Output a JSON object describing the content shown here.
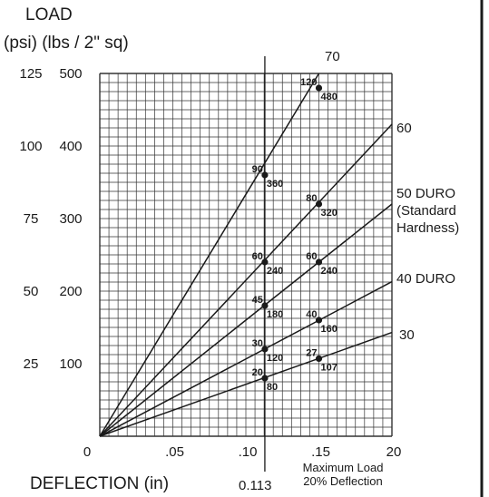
{
  "header": {
    "load_label": "LOAD",
    "units_label": "(psi) (lbs / 2\" sq)"
  },
  "chart_data": {
    "type": "line",
    "xlabel": "DEFLECTION (in)",
    "xlim": [
      0,
      0.2
    ],
    "ylim": [
      0,
      500
    ],
    "x_ticks": [
      "0",
      ".05",
      ".10",
      ".15",
      "20"
    ],
    "y_ticks": [
      {
        "psi": "125",
        "lbs": "500",
        "value": 500
      },
      {
        "psi": "100",
        "lbs": "400",
        "value": 400
      },
      {
        "psi": "75",
        "lbs": "300",
        "value": 300
      },
      {
        "psi": "50",
        "lbs": "200",
        "value": 200
      },
      {
        "psi": "25",
        "lbs": "100",
        "value": 100
      },
      {
        "psi": "",
        "lbs": "",
        "value": 0
      }
    ],
    "grid": true,
    "marker_line": {
      "x": 0.113,
      "label": "0.113"
    },
    "max_note": [
      "Maximum Load",
      "20% Deflection"
    ],
    "series": [
      {
        "name": "70",
        "label_lines": [
          "70"
        ],
        "end": [
          0.15,
          500
        ],
        "points": [
          {
            "x": 0.113,
            "psi": "90",
            "lbs": "360"
          },
          {
            "x": 0.15,
            "psi": "120",
            "lbs": "480"
          }
        ]
      },
      {
        "name": "60",
        "label_lines": [
          "60"
        ],
        "end": [
          0.2,
          430
        ],
        "points": [
          {
            "x": 0.15,
            "psi": "80",
            "lbs": "320"
          }
        ]
      },
      {
        "name": "50 DURO",
        "label_lines": [
          "50 DURO",
          "(Standard",
          "Hardness)"
        ],
        "end": [
          0.2,
          320
        ],
        "points": [
          {
            "x": 0.113,
            "psi": "60",
            "lbs": "240"
          },
          {
            "x": 0.15,
            "psi": "60",
            "lbs": "240"
          }
        ]
      },
      {
        "name": "40 DURO",
        "label_lines": [
          "40 DURO"
        ],
        "end": [
          0.2,
          213
        ],
        "points": [
          {
            "x": 0.113,
            "psi": "45",
            "lbs": "180"
          },
          {
            "x": 0.15,
            "psi": "40",
            "lbs": "160"
          }
        ]
      },
      {
        "name": "30",
        "label_lines": [
          "30"
        ],
        "end": [
          0.2,
          143
        ],
        "points": [
          {
            "x": 0.113,
            "psi": "30",
            "lbs": "120"
          },
          {
            "x": 0.15,
            "psi": "27",
            "lbs": "107"
          },
          {
            "x": 0.113,
            "psi": "20",
            "lbs": "80"
          }
        ]
      }
    ]
  }
}
